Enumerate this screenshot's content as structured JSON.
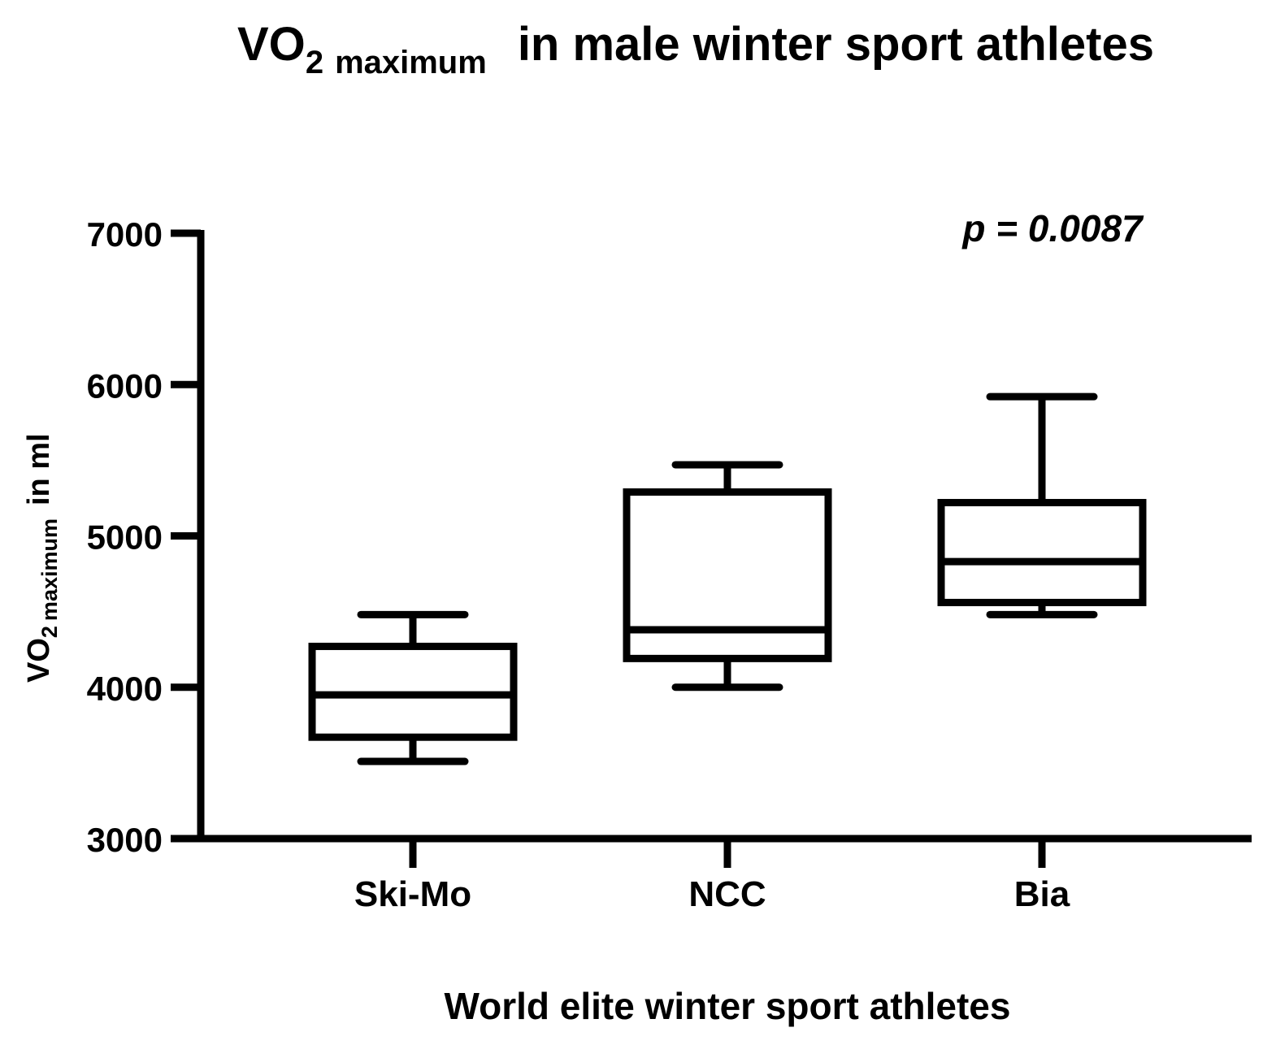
{
  "chart_data": {
    "type": "box",
    "title": {
      "main": "VO",
      "sub_2": "2",
      "sub_max": "maximum",
      "rest": "in male winter sport athletes"
    },
    "ylabel": {
      "main": "VO",
      "sub_2": "2",
      "sub_max": "maximum",
      "rest": "in ml"
    },
    "xlabel": "World elite winter sport athletes",
    "annotation": "p = 0.0087",
    "ylim": [
      3000,
      7000
    ],
    "yticks": [
      3000,
      4000,
      5000,
      6000,
      7000
    ],
    "yticks_labels": [
      "3000",
      "4000",
      "5000",
      "6000",
      "7000"
    ],
    "categories": [
      "Ski-Mo",
      "NCC",
      "Bia"
    ],
    "boxes": [
      {
        "name": "Ski-Mo",
        "min": 3510,
        "q1": 3670,
        "median": 3950,
        "q3": 4270,
        "max": 4480
      },
      {
        "name": "NCC",
        "min": 4000,
        "q1": 4190,
        "median": 4380,
        "q3": 5290,
        "max": 5470
      },
      {
        "name": "Bia",
        "min": 4480,
        "q1": 4560,
        "median": 4830,
        "q3": 5220,
        "max": 5920
      }
    ],
    "color": "#000000"
  }
}
